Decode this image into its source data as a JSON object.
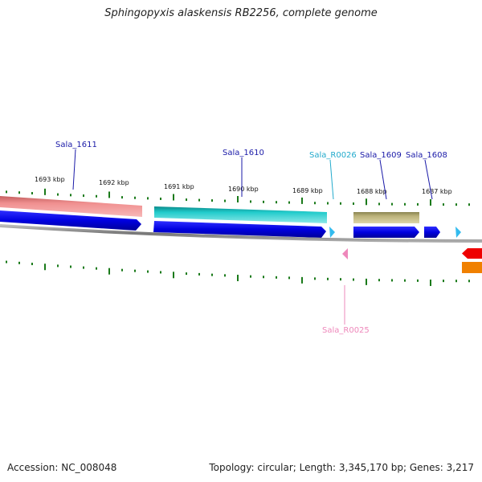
{
  "title": "Sphingopyxis alaskensis RB2256, complete genome",
  "footer": {
    "accession": "Accession: NC_008048",
    "topology": "Topology: circular; Length: 3,345,170 bp; Genes: 3,217"
  },
  "colors": {
    "background": "#ffffff",
    "backbone": "#888888",
    "cds": "#0000e0",
    "trna": "#33bbee",
    "trna_reverse": "#ee88bb",
    "tick_marks": "#1a7a1a",
    "gene_label": "#1a1aa8",
    "trna_label": "#22aacc",
    "reverse_trna_label": "#ee88bb"
  },
  "kbp_labels": [
    {
      "text": "1693 kbp"
    },
    {
      "text": "1692 kbp"
    },
    {
      "text": "1691 kbp"
    },
    {
      "text": "1690 kbp"
    },
    {
      "text": "1689 kbp"
    },
    {
      "text": "1688 kbp"
    },
    {
      "text": "1687 kbp"
    }
  ],
  "gene_labels": [
    {
      "text": "Sala_1611",
      "kind": "gene"
    },
    {
      "text": "Sala_1610",
      "kind": "gene"
    },
    {
      "text": "Sala_R0026",
      "kind": "trna"
    },
    {
      "text": "Sala_1609",
      "kind": "gene"
    },
    {
      "text": "Sala_1608",
      "kind": "gene"
    },
    {
      "text": "Sala_R0025",
      "kind": "trna_reverse"
    }
  ],
  "features": {
    "cog_bars": [
      {
        "name": "cog-bar-sala-1611",
        "color": "#ee8888"
      },
      {
        "name": "cog-bar-sala-1610",
        "color": "#22cccc"
      },
      {
        "name": "cog-bar-sala-1609",
        "color": "#bbb27a"
      }
    ],
    "reverse_genes": [
      {
        "name": "reverse-gene-red",
        "color": "#ee0000"
      },
      {
        "name": "reverse-gene-orange",
        "color": "#f08000"
      }
    ]
  }
}
